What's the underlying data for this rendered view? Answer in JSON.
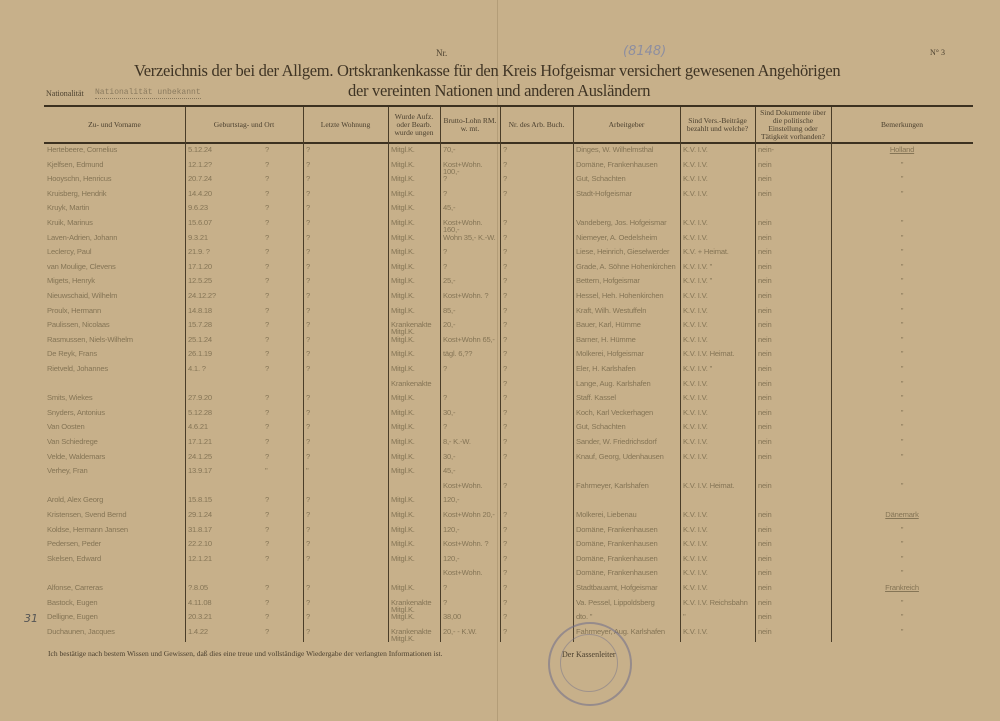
{
  "header": {
    "number_label": "Nr.",
    "sheet_number": "N° 3",
    "handwritten_note": "(8148)",
    "title_line1": "Verzeichnis der bei der Allgem. Ortskrankenkasse für den Kreis Hofgeismar versichert gewesenen Angehörigen",
    "title_line2": "der vereinten Nationen und anderen Ausländern",
    "nationality_label": "Nationalität",
    "nationality_value": "Nationalität unbekannt"
  },
  "columns": [
    "Zu- und Vorname",
    "Geburtstag- und Ort",
    "Letzte Wohnung",
    "Wurde Aufz. oder Bearb. wurde ungen",
    "Brutto-Lohn RM. w. mt.",
    "Nr. des Arb. Buch.",
    "Arbeitgeber",
    "Sind Vers.-Beiträge bezahlt und welche?",
    "Sind Dokumente über die politische Einstellung oder Tätigkeit vorhanden?",
    "Bemerkungen"
  ],
  "rows": [
    {
      "name": "Hertebeere, Cornelius",
      "birth": "5.12.24",
      "place": "?",
      "residence": "?",
      "status": "Mitgl.K.",
      "wage": "70,-",
      "nr": "?",
      "employer": "Dinges, W. Wilhelmsthal",
      "insurance": "K.V. I.V.",
      "documents": "nein-",
      "remark": "Holland"
    },
    {
      "name": "Kjelfsen, Edmund",
      "birth": "12.1.2?",
      "place": "?",
      "residence": "?",
      "status": "Mitgl.K.",
      "wage": "Kost+Wohn. 100,-",
      "nr": "?",
      "employer": "Domäne, Frankenhausen",
      "insurance": "K.V. I.V.",
      "documents": "nein",
      "remark": "\""
    },
    {
      "name": "Hooyschn, Henricus",
      "birth": "20.7.24",
      "place": "?",
      "residence": "?",
      "status": "Mitgl.K.",
      "wage": "?",
      "nr": "?",
      "employer": "Gut, Schachten",
      "insurance": "K.V. I.V.",
      "documents": "nein",
      "remark": "\""
    },
    {
      "name": "Kruisberg, Hendrik",
      "birth": "14.4.20",
      "place": "?",
      "residence": "?",
      "status": "Mitgl.K.",
      "wage": "?",
      "nr": "?",
      "employer": "Stadt-Hofgeismar",
      "insurance": "K.V. I.V.",
      "documents": "nein",
      "remark": "\""
    },
    {
      "name": "Kruyk, Martin",
      "birth": "9.6.23",
      "place": "?",
      "residence": "?",
      "status": "Mitgl.K.",
      "wage": "45,-",
      "nr": "",
      "employer": "",
      "insurance": "",
      "documents": "",
      "remark": ""
    },
    {
      "name": "Kruik, Marinus",
      "birth": "15.6.07",
      "place": "?",
      "residence": "?",
      "status": "Mitgl.K.",
      "wage": "Kost+Wohn. 160,-",
      "nr": "?",
      "employer": "Vandeberg, Jos. Hofgeismar",
      "insurance": "K.V. I.V.",
      "documents": "nein",
      "remark": "\""
    },
    {
      "name": "Laven-Adrien, Johann",
      "birth": "9.3.21",
      "place": "?",
      "residence": "?",
      "status": "Mitgl.K.",
      "wage": "Wohn 35,- K.-W.",
      "nr": "?",
      "employer": "Niemeyer, A. Oedelsheim",
      "insurance": "K.V. I.V.",
      "documents": "nein",
      "remark": "\""
    },
    {
      "name": "Leclercy, Paul",
      "birth": "21.9. ?",
      "place": "?",
      "residence": "?",
      "status": "Mitgl.K.",
      "wage": "?",
      "nr": "?",
      "employer": "Liese, Heinrich, Gieselwerder",
      "insurance": "K.V. + Heimat.",
      "documents": "nein",
      "remark": "\""
    },
    {
      "name": "van Moulige, Clevens",
      "birth": "17.1.20",
      "place": "?",
      "residence": "?",
      "status": "Mitgl.K.",
      "wage": "?",
      "nr": "?",
      "employer": "Grade, A. Söhne Hohenkirchen",
      "insurance": "K.V. I.V. \"",
      "documents": "nein",
      "remark": "\""
    },
    {
      "name": "Migets, Henryk",
      "birth": "12.5.25",
      "place": "?",
      "residence": "?",
      "status": "Mitgl.K.",
      "wage": "25,-",
      "nr": "?",
      "employer": "Bettern, Hofgeismar",
      "insurance": "K.V. I.V. \"",
      "documents": "nein",
      "remark": "\""
    },
    {
      "name": "Nieuwschaid, Wilhelm",
      "birth": "24.12.2?",
      "place": "?",
      "residence": "?",
      "status": "Mitgl.K.",
      "wage": "Kost+Wohn. ?",
      "nr": "?",
      "employer": "Hessel, Heh. Hohenkirchen",
      "insurance": "K.V. I.V.",
      "documents": "nein",
      "remark": "\""
    },
    {
      "name": "Proulx, Hermann",
      "birth": "14.8.18",
      "place": "?",
      "residence": "?",
      "status": "Mitgl.K.",
      "wage": "85,-",
      "nr": "?",
      "employer": "Kraft, Wilh. Westuffeln",
      "insurance": "K.V. I.V.",
      "documents": "nein",
      "remark": "\""
    },
    {
      "name": "Paulissen, Nicolaas",
      "birth": "15.7.28",
      "place": "?",
      "residence": "?",
      "status": "Krankenakte Mitgl.K.",
      "wage": "20,-",
      "nr": "?",
      "employer": "Bauer, Karl, Hümme",
      "insurance": "K.V. I.V.",
      "documents": "nein",
      "remark": "\""
    },
    {
      "name": "Rasmussen, Niels-Wilhelm",
      "birth": "25.1.24",
      "place": "?",
      "residence": "?",
      "status": "Mitgl.K.",
      "wage": "Kost+Wohn 65,-",
      "nr": "?",
      "employer": "Barner, H. Hümme",
      "insurance": "K.V. I.V.",
      "documents": "nein",
      "remark": "\""
    },
    {
      "name": "De Reyk, Frans",
      "birth": "26.1.19",
      "place": "?",
      "residence": "?",
      "status": "Mitgl.K.",
      "wage": "tägl. 6,??",
      "nr": "?",
      "employer": "Molkerei, Hofgeismar",
      "insurance": "K.V. I.V. Heimat.",
      "documents": "nein",
      "remark": "\""
    },
    {
      "name": "Rietveld, Johannes",
      "birth": "4.1. ?",
      "place": "?",
      "residence": "?",
      "status": "Mitgl.K.",
      "wage": "?",
      "nr": "?",
      "employer": "Eler, H. Karlshafen",
      "insurance": "K.V. I.V. \"",
      "documents": "nein",
      "remark": "\""
    },
    {
      "name": "",
      "birth": "",
      "place": "",
      "residence": "",
      "status": "Krankenakte",
      "wage": "",
      "nr": "?",
      "employer": "Lange, Aug. Karlshafen",
      "insurance": "K.V. I.V.",
      "documents": "nein",
      "remark": "\""
    },
    {
      "name": "Smits, Wiekes",
      "birth": "27.9.20",
      "place": "?",
      "residence": "?",
      "status": "Mitgl.K.",
      "wage": "?",
      "nr": "?",
      "employer": "Staff. Kassel",
      "insurance": "K.V. I.V.",
      "documents": "nein",
      "remark": "\""
    },
    {
      "name": "Snyders, Antonius",
      "birth": "5.12.28",
      "place": "?",
      "residence": "?",
      "status": "Mitgl.K.",
      "wage": "30,-",
      "nr": "?",
      "employer": "Koch, Karl Veckerhagen",
      "insurance": "K.V. I.V.",
      "documents": "nein",
      "remark": "\""
    },
    {
      "name": "Van Oosten",
      "birth": "4.6.21",
      "place": "?",
      "residence": "?",
      "status": "Mitgl.K.",
      "wage": "?",
      "nr": "?",
      "employer": "Gut, Schachten",
      "insurance": "K.V. I.V.",
      "documents": "nein",
      "remark": "\""
    },
    {
      "name": "Van Schiedrege",
      "birth": "17.1.21",
      "place": "?",
      "residence": "?",
      "status": "Mitgl.K.",
      "wage": "8,- K.-W.",
      "nr": "?",
      "employer": "Sander, W. Friedrichsdorf",
      "insurance": "K.V. I.V.",
      "documents": "nein",
      "remark": "\""
    },
    {
      "name": "Velde, Waldemars",
      "birth": "24.1.25",
      "place": "?",
      "residence": "?",
      "status": "Mitgl.K.",
      "wage": "30,-",
      "nr": "?",
      "employer": "Knauf, Georg, Udenhausen",
      "insurance": "K.V. I.V.",
      "documents": "nein",
      "remark": "\""
    },
    {
      "name": "Verhey, Fran",
      "birth": "13.9.17",
      "place": "\"",
      "residence": "\"",
      "status": "Mitgl.K.",
      "wage": "45,-",
      "nr": "",
      "employer": "",
      "insurance": "",
      "documents": "",
      "remark": ""
    },
    {
      "name": "",
      "birth": "",
      "place": "",
      "residence": "",
      "status": "",
      "wage": "Kost+Wohn.",
      "nr": "?",
      "employer": "Fahrmeyer, Karlshafen",
      "insurance": "K.V. I.V. Heimat.",
      "documents": "nein",
      "remark": "\""
    },
    {
      "name": "Arold, Alex Georg",
      "birth": "15.8.15",
      "place": "?",
      "residence": "?",
      "status": "Mitgl.K.",
      "wage": "120,-",
      "nr": "",
      "employer": "",
      "insurance": "",
      "documents": "",
      "remark": ""
    },
    {
      "name": "Kristensen, Svend Bernd",
      "birth": "29.1.24",
      "place": "?",
      "residence": "?",
      "status": "Mitgl.K.",
      "wage": "Kost+Wohn 20,-",
      "nr": "?",
      "employer": "Molkerei, Liebenau",
      "insurance": "K.V. I.V.",
      "documents": "nein",
      "remark": "Dänemark"
    },
    {
      "name": "Koldse, Hermann Jansen",
      "birth": "31.8.17",
      "place": "?",
      "residence": "?",
      "status": "Mitgl.K.",
      "wage": "120,-",
      "nr": "?",
      "employer": "Domäne, Frankenhausen",
      "insurance": "K.V. I.V.",
      "documents": "nein",
      "remark": "\""
    },
    {
      "name": "Pedersen, Peder",
      "birth": "22.2.10",
      "place": "?",
      "residence": "?",
      "status": "Mitgl.K.",
      "wage": "Kost+Wohn. ?",
      "nr": "?",
      "employer": "Domäne, Frankenhausen",
      "insurance": "K.V. I.V.",
      "documents": "nein",
      "remark": "\""
    },
    {
      "name": "Skelsen, Edward",
      "birth": "12.1.21",
      "place": "?",
      "residence": "?",
      "status": "Mitgl.K.",
      "wage": "120,-",
      "nr": "?",
      "employer": "Domäne, Frankenhausen",
      "insurance": "K.V. I.V.",
      "documents": "nein",
      "remark": "\""
    },
    {
      "name": "",
      "birth": "",
      "place": "",
      "residence": "",
      "status": "",
      "wage": "Kost+Wohn.",
      "nr": "?",
      "employer": "Domäne, Frankenhausen",
      "insurance": "K.V. I.V.",
      "documents": "nein",
      "remark": "\""
    },
    {
      "name": "Alfonse, Carreras",
      "birth": "?.8.05",
      "place": "?",
      "residence": "?",
      "status": "Mitgl.K.",
      "wage": "?",
      "nr": "?",
      "employer": "Stadtbauamt, Hofgeismar",
      "insurance": "K.V. I.V.",
      "documents": "nein",
      "remark": "Frankreich"
    },
    {
      "name": "Bastock, Eugen",
      "birth": "4.11.08",
      "place": "?",
      "residence": "?",
      "status": "Krankenakte Mitgl.K.",
      "wage": "?",
      "nr": "?",
      "employer": "Va. Pessel, Lippoldsberg",
      "insurance": "K.V. I.V. Reichsbahn",
      "documents": "nein",
      "remark": "\""
    },
    {
      "name": "Delligne, Eugen",
      "birth": "20.3.21",
      "place": "?",
      "residence": "?",
      "status": "Mitgl.K.",
      "wage": "38,00",
      "nr": "?",
      "employer": "dto. \"",
      "insurance": "\"",
      "documents": "nein",
      "remark": "\""
    },
    {
      "name": "Duchaunen, Jacques",
      "birth": "1.4.22",
      "place": "?",
      "residence": "?",
      "status": "Krankenakte Mitgl.K.",
      "wage": "20,- - K.W.",
      "nr": "?",
      "employer": "Fahrmeyer, Aug. Karlshafen",
      "insurance": "K.V. I.V.",
      "documents": "nein",
      "remark": "\""
    }
  ],
  "footer": {
    "certification": "Ich bestätige nach bestem Wissen und Gewissen, daß dies eine treue und vollständige Wiedergabe der verlangten Informationen ist.",
    "signature_label": "Der Kassenleiter",
    "margin_note": "31",
    "stamp_text": "Allgem. Ortskrankenkasse f. d. Kreis Hofgeismar"
  },
  "colors": {
    "paper": "#c7b08a",
    "ink": "#3f3424",
    "typewriter": "#857556",
    "stamp": "#6e6e8c"
  }
}
